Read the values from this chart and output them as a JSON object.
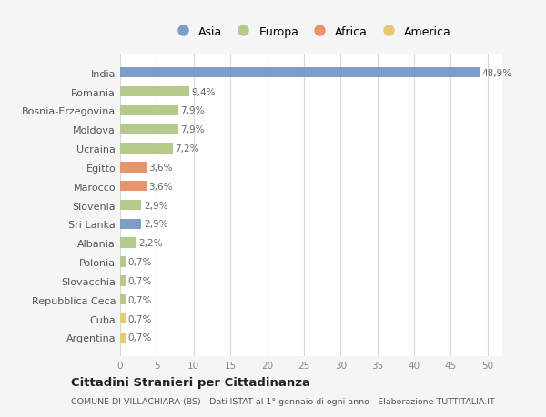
{
  "countries": [
    "India",
    "Romania",
    "Bosnia-Erzegovina",
    "Moldova",
    "Ucraina",
    "Egitto",
    "Marocco",
    "Slovenia",
    "Sri Lanka",
    "Albania",
    "Polonia",
    "Slovacchia",
    "Repubblica Ceca",
    "Cuba",
    "Argentina"
  ],
  "values": [
    48.9,
    9.4,
    7.9,
    7.9,
    7.2,
    3.6,
    3.6,
    2.9,
    2.9,
    2.2,
    0.7,
    0.7,
    0.7,
    0.7,
    0.7
  ],
  "labels": [
    "48,9%",
    "9,4%",
    "7,9%",
    "7,9%",
    "7,2%",
    "3,6%",
    "3,6%",
    "2,9%",
    "2,9%",
    "2,2%",
    "0,7%",
    "0,7%",
    "0,7%",
    "0,7%",
    "0,7%"
  ],
  "colors": [
    "#7b9dc8",
    "#b5c98a",
    "#b5c98a",
    "#b5c98a",
    "#b5c98a",
    "#e8956d",
    "#e8956d",
    "#b5c98a",
    "#7b9dc8",
    "#b5c98a",
    "#b5c98a",
    "#b5c98a",
    "#b5c98a",
    "#e8c96d",
    "#e8c96d"
  ],
  "legend_labels": [
    "Asia",
    "Europa",
    "Africa",
    "America"
  ],
  "legend_colors": [
    "#7b9dc8",
    "#b5c98a",
    "#e8956d",
    "#e8c96d"
  ],
  "xlim": [
    0,
    52
  ],
  "xticks": [
    0,
    5,
    10,
    15,
    20,
    25,
    30,
    35,
    40,
    45,
    50
  ],
  "title": "Cittadini Stranieri per Cittadinanza",
  "subtitle": "COMUNE DI VILLACHIARA (BS) - Dati ISTAT al 1° gennaio di ogni anno - Elaborazione TUTTITALIA.IT",
  "background_color": "#f5f5f5",
  "bar_background": "#ffffff"
}
